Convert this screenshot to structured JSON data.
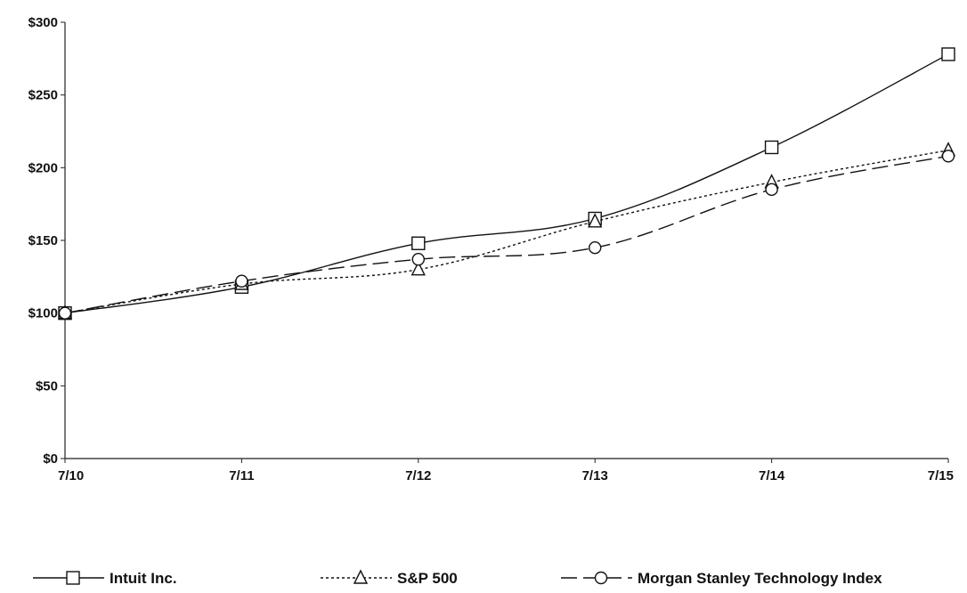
{
  "chart_data": {
    "type": "line",
    "title": "",
    "xlabel": "",
    "ylabel": "",
    "categories": [
      "7/10",
      "7/11",
      "7/12",
      "7/13",
      "7/14",
      "7/15"
    ],
    "y_tick_labels": [
      "$0",
      "$50",
      "$100",
      "$150",
      "$200",
      "$250",
      "$300"
    ],
    "ylim": [
      0,
      300
    ],
    "grid": false,
    "legend_position": "bottom",
    "series": [
      {
        "name": "Intuit Inc.",
        "values": [
          100,
          118,
          148,
          165,
          214,
          278
        ],
        "marker": "square",
        "dash": "solid"
      },
      {
        "name": "S&P 500",
        "values": [
          100,
          120,
          130,
          163,
          190,
          212
        ],
        "marker": "triangle",
        "dash": "dotted"
      },
      {
        "name": "Morgan Stanley Technology Index",
        "values": [
          100,
          122,
          137,
          145,
          185,
          208
        ],
        "marker": "circle",
        "dash": "dashed"
      }
    ]
  }
}
